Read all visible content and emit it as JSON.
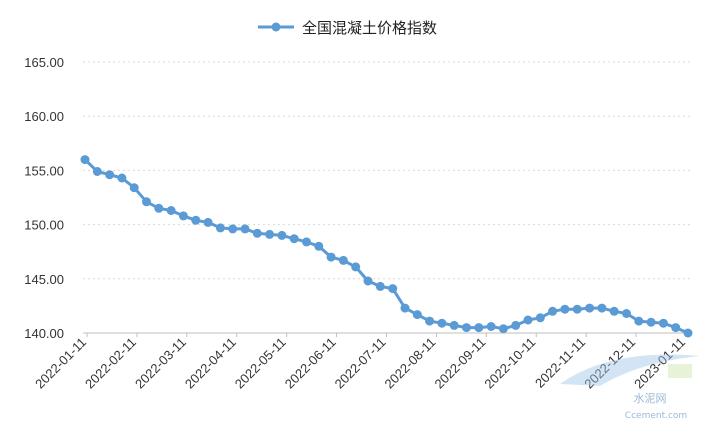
{
  "chart_data": {
    "type": "line",
    "title": "",
    "xlabel": "",
    "ylabel": "",
    "ylim": [
      140,
      165
    ],
    "grid": true,
    "legend_position": "top-center",
    "series": [
      {
        "name": "全国混凝土价格指数",
        "color": "#5b9bd5",
        "values": [
          156.0,
          154.9,
          154.6,
          154.3,
          153.4,
          152.1,
          151.5,
          151.3,
          150.8,
          150.4,
          150.2,
          149.7,
          149.6,
          149.6,
          149.2,
          149.1,
          149.0,
          148.7,
          148.4,
          148.0,
          147.0,
          146.7,
          146.1,
          144.8,
          144.3,
          144.1,
          142.3,
          141.7,
          141.1,
          140.9,
          140.7,
          140.5,
          140.5,
          140.6,
          140.4,
          140.7,
          141.2,
          141.4,
          142.0,
          142.2,
          142.2,
          142.3,
          142.3,
          142.0,
          141.8,
          141.1,
          141.0,
          140.9,
          140.5,
          140.0
        ]
      }
    ],
    "x_ticks": [
      "2022-01-11",
      "2022-02-11",
      "2022-03-11",
      "2022-04-11",
      "2022-05-11",
      "2022-06-11",
      "2022-07-11",
      "2022-08-11",
      "2022-09-11",
      "2022-10-11",
      "2022-11-11",
      "2022-12-11",
      "2023-01-11"
    ],
    "y_ticks": [
      "140.00",
      "145.00",
      "150.00",
      "155.00",
      "160.00",
      "165.00"
    ]
  },
  "watermark": {
    "logo_text": "水泥网",
    "site_text": "Ccement.com"
  }
}
